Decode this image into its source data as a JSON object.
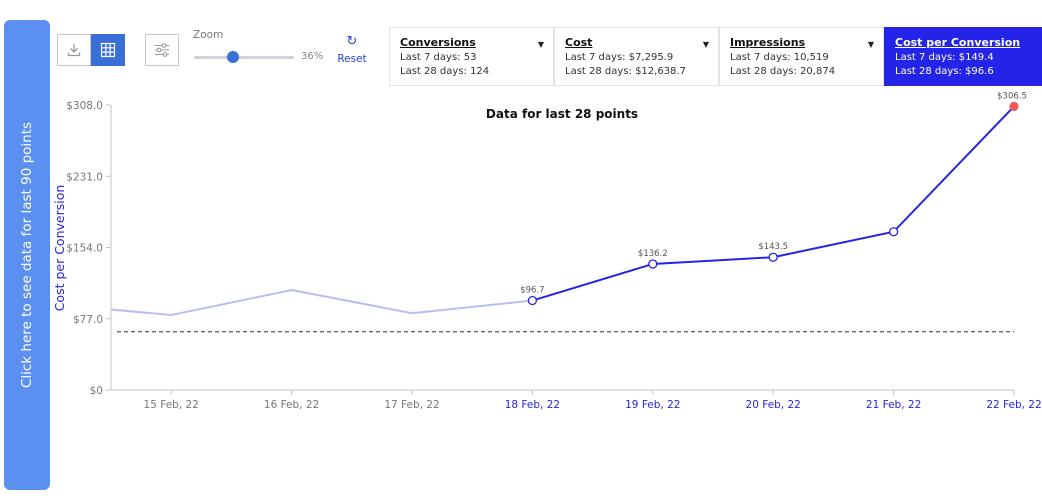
{
  "side_tab": {
    "label": "Click here to see data for last 90 points"
  },
  "toolbar": {
    "download_icon": "download-icon",
    "table_icon": "table-grid-icon",
    "filter_icon": "sliders-icon",
    "zoom_label": "Zoom",
    "zoom_value": "36%",
    "zoom_level": 0.36,
    "reset_label": "Reset",
    "reset_icon": "refresh-icon"
  },
  "metrics": [
    {
      "title": "Conversions",
      "line1": "Last 7 days: 53",
      "line2": "Last 28 days: 124",
      "selected": false
    },
    {
      "title": "Cost",
      "line1": "Last 7 days: $7,295.9",
      "line2": "Last 28 days: $12,638.7",
      "selected": false
    },
    {
      "title": "Impressions",
      "line1": "Last 7 days: 10,519",
      "line2": "Last 28 days: 20,874",
      "selected": false
    },
    {
      "title": "Cost per Conversion",
      "line1": "Last 7 days: $149.4",
      "line2": "Last 28 days: $96.6",
      "selected": true
    }
  ],
  "colors": {
    "accent": "#2424e8",
    "faded_line": "#b9bdf3",
    "last_point": "#f05a5a",
    "side_tab": "#5b8ff0",
    "toggle_active": "#3a6fd8"
  },
  "chart_data": {
    "type": "line",
    "title": "Data for last 28 points",
    "ylabel": "Cost per Conversion",
    "xlabel": "",
    "ylim": [
      0,
      308
    ],
    "yticks": [
      0,
      77,
      154,
      231,
      308
    ],
    "ytick_labels": [
      "$0",
      "$77.0",
      "$154.0",
      "$231.0",
      "$308.0"
    ],
    "categories": [
      "",
      "15 Feb, 22",
      "",
      "16 Feb, 22",
      "",
      "17 Feb, 22",
      "",
      "18 Feb, 22",
      "",
      "19 Feb, 22",
      "",
      "20 Feb, 22",
      "",
      "21 Feb, 22",
      "",
      "22 Feb, 22"
    ],
    "x_start": 14.5,
    "x": [
      14.5,
      15.0,
      16.0,
      17.0,
      18.0,
      19.0,
      20.0,
      21.0,
      22.0
    ],
    "values": [
      87,
      81,
      108,
      83,
      96.7,
      136.2,
      143.5,
      171,
      306.5
    ],
    "point_labels": [
      "",
      "",
      "",
      "",
      "$96.7",
      "$136.2",
      "$143.5",
      "",
      "$306.5"
    ],
    "highlight_from_x": 18.0,
    "markers_from_x": 18.0,
    "reference_line": 63,
    "x_ticks": [
      {
        "x": 15.0,
        "label": "15 Feb, 22",
        "highlight": false
      },
      {
        "x": 16.0,
        "label": "16 Feb, 22",
        "highlight": false
      },
      {
        "x": 17.0,
        "label": "17 Feb, 22",
        "highlight": false
      },
      {
        "x": 18.0,
        "label": "18 Feb, 22",
        "highlight": true
      },
      {
        "x": 19.0,
        "label": "19 Feb, 22",
        "highlight": true
      },
      {
        "x": 20.0,
        "label": "20 Feb, 22",
        "highlight": true
      },
      {
        "x": 21.0,
        "label": "21 Feb, 22",
        "highlight": true
      },
      {
        "x": 22.0,
        "label": "22 Feb, 22",
        "highlight": true
      }
    ]
  }
}
